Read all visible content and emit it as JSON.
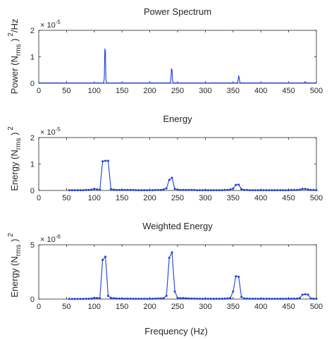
{
  "figure": {
    "xlabel": "Frequency (Hz)"
  },
  "chart_data": [
    {
      "type": "line",
      "title": "Power Spectrum",
      "ylabel_main": "Power (N",
      "ylabel_sub": "rms",
      "ylabel_close": ")",
      "ylabel_sup": "2",
      "ylabel_suffix": "/Hz",
      "multiplier_base": "× 10",
      "multiplier_exp": "-5",
      "xlim": [
        0,
        500
      ],
      "ylim": [
        0,
        2
      ],
      "xticks": [
        0,
        50,
        100,
        150,
        200,
        250,
        300,
        350,
        400,
        450,
        500
      ],
      "yticks": [
        0,
        1,
        2
      ],
      "series": [
        {
          "color": "#1f3fd6",
          "x": [
            0,
            115,
            117,
            118,
            119,
            120,
            121,
            122,
            124,
            235,
            237,
            238,
            239,
            240,
            241,
            243,
            356,
            358,
            359,
            360,
            361,
            362,
            364,
            477,
            479,
            480,
            481,
            483,
            500
          ],
          "y": [
            0.01,
            0.01,
            0.03,
            0.2,
            1.3,
            1.2,
            0.15,
            0.03,
            0.01,
            0.01,
            0.03,
            0.15,
            0.55,
            0.5,
            0.08,
            0.01,
            0.01,
            0.03,
            0.12,
            0.28,
            0.2,
            0.04,
            0.01,
            0.01,
            0.03,
            0.06,
            0.03,
            0.01,
            0.01
          ]
        }
      ]
    },
    {
      "type": "line",
      "title": "Energy",
      "ylabel_main": "Energy (N",
      "ylabel_sub": "rms",
      "ylabel_close": ")",
      "ylabel_sup": "2",
      "ylabel_suffix": "",
      "multiplier_base": "× 10",
      "multiplier_exp": "-5",
      "xlim": [
        0,
        500
      ],
      "ylim": [
        0,
        2
      ],
      "xticks": [
        0,
        50,
        100,
        150,
        200,
        250,
        300,
        350,
        400,
        450,
        500
      ],
      "yticks": [
        0,
        1,
        2
      ],
      "series": [
        {
          "color": "#1f3fd6",
          "markers": true,
          "x": [
            55,
            60,
            65,
            70,
            75,
            80,
            85,
            90,
            95,
            100,
            105,
            110,
            115,
            120,
            125,
            130,
            135,
            140,
            145,
            150,
            155,
            160,
            165,
            170,
            175,
            180,
            185,
            190,
            195,
            200,
            205,
            210,
            215,
            220,
            225,
            230,
            235,
            240,
            245,
            250,
            255,
            260,
            265,
            270,
            275,
            280,
            285,
            290,
            295,
            300,
            305,
            310,
            315,
            320,
            325,
            330,
            335,
            340,
            345,
            350,
            355,
            360,
            365,
            370,
            375,
            380,
            385,
            390,
            395,
            400,
            405,
            410,
            415,
            420,
            425,
            430,
            435,
            440,
            445,
            450,
            455,
            460,
            465,
            470,
            475,
            480,
            485,
            490,
            495,
            500
          ],
          "y": [
            0.01,
            0.01,
            0.01,
            0.01,
            0.01,
            0.01,
            0.02,
            0.02,
            0.03,
            0.06,
            0.04,
            0.03,
            1.1,
            1.12,
            1.12,
            0.05,
            0.03,
            0.02,
            0.02,
            0.02,
            0.02,
            0.02,
            0.02,
            0.02,
            0.01,
            0.01,
            0.01,
            0.01,
            0.01,
            0.01,
            0.01,
            0.02,
            0.02,
            0.02,
            0.04,
            0.08,
            0.4,
            0.48,
            0.06,
            0.03,
            0.02,
            0.02,
            0.02,
            0.02,
            0.02,
            0.02,
            0.01,
            0.01,
            0.01,
            0.01,
            0.01,
            0.01,
            0.01,
            0.01,
            0.01,
            0.01,
            0.02,
            0.02,
            0.04,
            0.07,
            0.21,
            0.22,
            0.05,
            0.02,
            0.02,
            0.01,
            0.01,
            0.01,
            0.01,
            0.01,
            0.01,
            0.01,
            0.01,
            0.01,
            0.01,
            0.01,
            0.01,
            0.01,
            0.01,
            0.01,
            0.02,
            0.02,
            0.02,
            0.03,
            0.06,
            0.06,
            0.04,
            0.02,
            0.02,
            0.01
          ]
        }
      ]
    },
    {
      "type": "line",
      "title": "Weighted Energy",
      "ylabel_main": "Energy (N",
      "ylabel_sub": "rms",
      "ylabel_close": ")",
      "ylabel_sup": "2",
      "ylabel_suffix": "",
      "multiplier_base": "× 10",
      "multiplier_exp": "-6",
      "xlim": [
        0,
        500
      ],
      "ylim": [
        0,
        5
      ],
      "xticks": [
        0,
        50,
        100,
        150,
        200,
        250,
        300,
        350,
        400,
        450,
        500
      ],
      "yticks": [
        0,
        5
      ],
      "series": [
        {
          "color": "#1f3fd6",
          "markers": true,
          "x": [
            55,
            60,
            65,
            70,
            75,
            80,
            85,
            90,
            95,
            100,
            105,
            110,
            115,
            120,
            125,
            130,
            135,
            140,
            145,
            150,
            155,
            160,
            165,
            170,
            175,
            180,
            185,
            190,
            195,
            200,
            205,
            210,
            215,
            220,
            225,
            230,
            235,
            240,
            245,
            250,
            255,
            260,
            265,
            270,
            275,
            280,
            285,
            290,
            295,
            300,
            305,
            310,
            315,
            320,
            325,
            330,
            335,
            340,
            345,
            350,
            355,
            360,
            365,
            370,
            375,
            380,
            385,
            390,
            395,
            400,
            405,
            410,
            415,
            420,
            425,
            430,
            435,
            440,
            445,
            450,
            455,
            460,
            465,
            470,
            475,
            480,
            485,
            490,
            495,
            500
          ],
          "y": [
            0.02,
            0.02,
            0.02,
            0.02,
            0.02,
            0.02,
            0.03,
            0.03,
            0.05,
            0.12,
            0.1,
            0.08,
            3.6,
            3.9,
            0.3,
            0.12,
            0.08,
            0.06,
            0.05,
            0.04,
            0.04,
            0.04,
            0.04,
            0.03,
            0.03,
            0.03,
            0.03,
            0.03,
            0.03,
            0.03,
            0.03,
            0.05,
            0.06,
            0.06,
            0.08,
            0.3,
            3.8,
            4.3,
            0.7,
            0.12,
            0.08,
            0.1,
            0.08,
            0.06,
            0.05,
            0.05,
            0.04,
            0.03,
            0.03,
            0.03,
            0.03,
            0.03,
            0.03,
            0.03,
            0.03,
            0.04,
            0.05,
            0.06,
            0.1,
            0.7,
            2.1,
            2.05,
            0.2,
            0.06,
            0.05,
            0.04,
            0.03,
            0.03,
            0.03,
            0.03,
            0.03,
            0.03,
            0.03,
            0.03,
            0.03,
            0.03,
            0.03,
            0.03,
            0.03,
            0.03,
            0.04,
            0.04,
            0.05,
            0.1,
            0.4,
            0.45,
            0.4,
            0.06,
            0.04,
            0.03
          ]
        }
      ]
    }
  ]
}
